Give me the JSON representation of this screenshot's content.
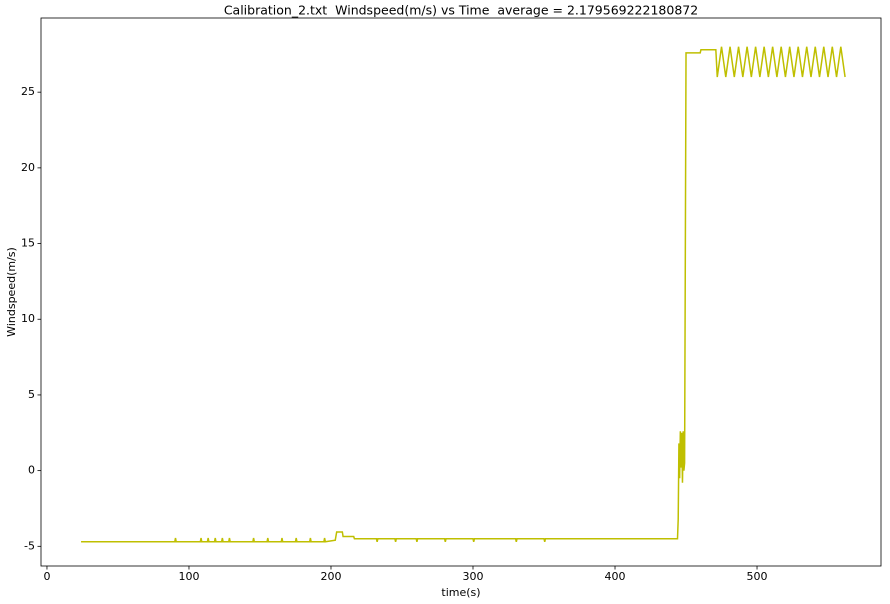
{
  "chart_data": {
    "type": "line",
    "title": "Calibration_2.txt  Windspeed(m/s) vs Time  average = 2.179569222180872",
    "x_label": "time(s)",
    "y_label": "Windspeed(m/s)",
    "color": "#bfbf00",
    "xlim": [
      -4.2,
      587.3
    ],
    "ylim": [
      -6.3,
      29.9
    ],
    "xticks": [
      0,
      100,
      200,
      300,
      400,
      500
    ],
    "yticks": [
      -5,
      0,
      5,
      10,
      15,
      20,
      25
    ],
    "x": [
      24,
      90,
      90.5,
      91,
      108,
      108.5,
      109,
      113,
      113.5,
      114,
      118,
      118.5,
      119,
      123,
      123.5,
      124,
      128,
      128.5,
      129,
      145,
      145.5,
      146,
      155,
      155.5,
      156,
      165,
      165.5,
      166,
      175,
      175.5,
      176,
      185,
      185.5,
      186,
      195,
      195.5,
      196,
      203,
      204,
      208,
      208.5,
      216,
      216.5,
      232,
      232.5,
      233,
      245,
      245.5,
      246,
      260,
      260.5,
      261,
      280,
      280.5,
      281,
      300,
      300.5,
      301,
      330,
      330.5,
      331,
      350,
      350.5,
      351,
      444,
      444.5,
      445,
      445.5,
      446,
      446.5,
      447,
      447.5,
      448,
      448.5,
      449,
      450,
      460,
      460.5,
      471,
      472,
      475,
      478,
      481,
      484,
      487,
      490,
      493,
      496,
      499,
      502,
      505,
      508,
      511,
      514,
      517,
      520,
      523,
      526,
      529,
      532,
      535,
      538,
      541,
      544,
      547,
      550,
      553,
      556,
      559,
      562
    ],
    "values": [
      -4.7,
      -4.7,
      -4.45,
      -4.7,
      -4.7,
      -4.45,
      -4.7,
      -4.7,
      -4.45,
      -4.7,
      -4.7,
      -4.45,
      -4.7,
      -4.7,
      -4.45,
      -4.7,
      -4.7,
      -4.45,
      -4.7,
      -4.7,
      -4.45,
      -4.7,
      -4.7,
      -4.45,
      -4.7,
      -4.7,
      -4.45,
      -4.7,
      -4.7,
      -4.45,
      -4.7,
      -4.7,
      -4.45,
      -4.7,
      -4.7,
      -4.45,
      -4.7,
      -4.6,
      -4.05,
      -4.05,
      -4.35,
      -4.35,
      -4.5,
      -4.5,
      -4.7,
      -4.5,
      -4.5,
      -4.7,
      -4.5,
      -4.5,
      -4.7,
      -4.5,
      -4.5,
      -4.7,
      -4.5,
      -4.5,
      -4.7,
      -4.5,
      -4.5,
      -4.7,
      -4.5,
      -4.5,
      -4.7,
      -4.5,
      -4.5,
      -3.2,
      1.8,
      -0.5,
      2.6,
      0.2,
      2.5,
      -0.8,
      2.6,
      0,
      0.5,
      27.6,
      27.6,
      27.8,
      27.8,
      26,
      28,
      26,
      28,
      26,
      28,
      26,
      28,
      26,
      28,
      26,
      28,
      26,
      28,
      26,
      28,
      26,
      28,
      26,
      28,
      26,
      28,
      26,
      28,
      26,
      28,
      26,
      28,
      26,
      28,
      26
    ]
  }
}
